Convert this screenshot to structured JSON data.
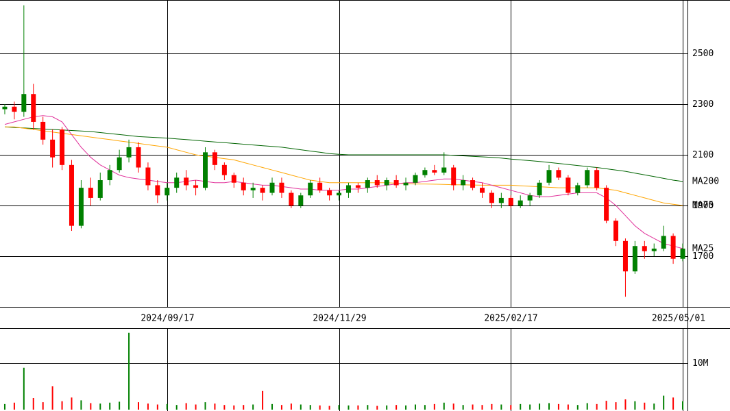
{
  "chart_data": {
    "type": "candlestick",
    "categories": [
      null,
      null,
      null,
      null,
      null,
      null,
      null,
      null,
      null,
      null,
      null,
      null,
      null,
      null,
      null,
      null,
      null,
      "2024/09/17",
      null,
      null,
      null,
      null,
      null,
      null,
      null,
      null,
      null,
      null,
      null,
      null,
      null,
      null,
      null,
      null,
      null,
      "2024/11/29",
      null,
      null,
      null,
      null,
      null,
      null,
      null,
      null,
      null,
      null,
      null,
      null,
      null,
      null,
      null,
      null,
      null,
      "2025/02/17",
      null,
      null,
      null,
      null,
      null,
      null,
      null,
      null,
      null,
      null,
      null,
      null,
      null,
      null,
      null,
      null,
      null,
      "2025/05/01"
    ],
    "open": [
      2280,
      2290,
      2270,
      2340,
      2230,
      2160,
      2200,
      2060,
      1820,
      1970,
      1930,
      2000,
      2040,
      2090,
      2130,
      2050,
      1980,
      1940,
      1970,
      2010,
      1980,
      1970,
      2110,
      2060,
      2020,
      1990,
      1960,
      1970,
      1950,
      1990,
      1950,
      1900,
      1940,
      1990,
      1960,
      1940,
      1950,
      1980,
      1970,
      2000,
      1980,
      2000,
      1980,
      1990,
      2020,
      2040,
      2030,
      2050,
      1980,
      2000,
      1970,
      1950,
      1910,
      1930,
      1900,
      1920,
      1940,
      1990,
      2040,
      2010,
      1950,
      1980,
      2040,
      1970,
      1840,
      1760,
      1640,
      1740,
      1720,
      1730,
      1780,
      1690
    ],
    "high": [
      2300,
      2310,
      2690,
      2380,
      2250,
      2200,
      2210,
      2080,
      2000,
      2010,
      2030,
      2060,
      2120,
      2160,
      2150,
      2070,
      2000,
      1990,
      2030,
      2040,
      2000,
      2130,
      2120,
      2070,
      2030,
      2010,
      1990,
      1980,
      2010,
      2010,
      1960,
      1950,
      2000,
      2010,
      1970,
      1960,
      1990,
      1990,
      2010,
      2020,
      2010,
      2020,
      2010,
      2030,
      2050,
      2060,
      2110,
      2060,
      2020,
      2010,
      1990,
      1960,
      1950,
      1940,
      1940,
      1950,
      2000,
      2060,
      2050,
      2020,
      1990,
      2050,
      2050,
      1980,
      1850,
      1770,
      1760,
      1760,
      1750,
      1820,
      1790,
      1750
    ],
    "low": [
      2260,
      2240,
      2250,
      2200,
      2140,
      2050,
      2040,
      1800,
      1810,
      1900,
      1920,
      1980,
      2030,
      2070,
      2030,
      1960,
      1910,
      1920,
      1950,
      1960,
      1940,
      1960,
      2040,
      2000,
      1970,
      1940,
      1930,
      1920,
      1940,
      1930,
      1890,
      1890,
      1930,
      1950,
      1920,
      1920,
      1930,
      1950,
      1950,
      1970,
      1960,
      1970,
      1960,
      1980,
      2010,
      2020,
      2020,
      1960,
      1960,
      1960,
      1930,
      1890,
      1890,
      1890,
      1890,
      1900,
      1930,
      1980,
      2000,
      1940,
      1940,
      1970,
      1960,
      1830,
      1740,
      1540,
      1630,
      1690,
      1700,
      1720,
      1670,
      1680
    ],
    "close": [
      2290,
      2270,
      2340,
      2230,
      2160,
      2090,
      2060,
      1820,
      1970,
      1930,
      2000,
      2040,
      2090,
      2130,
      2050,
      1980,
      1940,
      1970,
      2010,
      1980,
      1970,
      2110,
      2060,
      2020,
      1990,
      1960,
      1970,
      1950,
      1990,
      1950,
      1900,
      1940,
      1990,
      1960,
      1940,
      1950,
      1980,
      1970,
      2000,
      1980,
      2000,
      1980,
      1990,
      2020,
      2040,
      2030,
      2050,
      1980,
      2000,
      1970,
      1950,
      1910,
      1930,
      1900,
      1920,
      1940,
      1990,
      2040,
      2010,
      1950,
      1980,
      2040,
      1970,
      1840,
      1760,
      1640,
      1740,
      1720,
      1730,
      1780,
      1690,
      1730
    ],
    "up_color": "#008000",
    "down_color": "#ff0000",
    "series": [
      {
        "name": "MA200",
        "color": "#006400",
        "values": [
          2210,
          2208,
          2206,
          2204,
          2202,
          2200,
          2198,
          2196,
          2194,
          2192,
          2188,
          2184,
          2180,
          2176,
          2172,
          2170,
          2168,
          2166,
          2163,
          2160,
          2157,
          2154,
          2151,
          2148,
          2145,
          2142,
          2139,
          2136,
          2133,
          2130,
          2125,
          2120,
          2115,
          2110,
          2105,
          2102,
          2100,
          2100,
          2100,
          2100,
          2100,
          2100,
          2100,
          2100,
          2100,
          2100,
          2100,
          2098,
          2096,
          2094,
          2092,
          2090,
          2087,
          2083,
          2080,
          2077,
          2074,
          2070,
          2066,
          2062,
          2058,
          2054,
          2050,
          2045,
          2040,
          2035,
          2028,
          2021,
          2014,
          2007,
          2000,
          1995
        ]
      },
      {
        "name": "MA75",
        "color": "#ffa500",
        "values": [
          2210,
          2210,
          2205,
          2200,
          2195,
          2190,
          2185,
          2180,
          2175,
          2170,
          2165,
          2160,
          2155,
          2150,
          2145,
          2140,
          2135,
          2130,
          2120,
          2110,
          2100,
          2095,
          2090,
          2085,
          2080,
          2070,
          2060,
          2050,
          2040,
          2030,
          2020,
          2010,
          2000,
          1995,
          1990,
          1990,
          1990,
          1990,
          1990,
          1990,
          1990,
          1988,
          1986,
          1985,
          1985,
          1984,
          1983,
          1982,
          1982,
          1981,
          1980,
          1980,
          1980,
          1980,
          1978,
          1976,
          1974,
          1972,
          1970,
          1970,
          1970,
          1970,
          1970,
          1965,
          1960,
          1950,
          1940,
          1930,
          1920,
          1910,
          1905,
          1900
        ]
      },
      {
        "name": "MA25",
        "color": "#e0309a",
        "values": [
          2220,
          2230,
          2240,
          2250,
          2255,
          2250,
          2230,
          2180,
          2130,
          2090,
          2060,
          2040,
          2020,
          2010,
          2005,
          2000,
          1995,
          1990,
          1990,
          1995,
          2000,
          1995,
          1990,
          1990,
          1995,
          1990,
          1985,
          1980,
          1980,
          1975,
          1970,
          1965,
          1965,
          1960,
          1960,
          1960,
          1965,
          1965,
          1970,
          1975,
          1980,
          1985,
          1990,
          1990,
          1995,
          2000,
          2005,
          2005,
          2000,
          1995,
          1990,
          1980,
          1970,
          1960,
          1950,
          1940,
          1935,
          1935,
          1940,
          1945,
          1950,
          1950,
          1950,
          1930,
          1900,
          1860,
          1820,
          1790,
          1770,
          1750,
          1740,
          1730
        ]
      }
    ],
    "ylim": [
      1500,
      2711
    ],
    "yticks": [
      1700,
      1900,
      2100,
      2300,
      2500
    ],
    "grid": true,
    "volume": {
      "values": [
        1200000,
        1500000,
        9000000,
        2500000,
        1600000,
        5000000,
        1800000,
        2600000,
        2000000,
        1400000,
        1300000,
        1500000,
        1700000,
        16500000,
        1600000,
        1300000,
        1100000,
        1200000,
        1000000,
        1400000,
        1100000,
        1600000,
        1300000,
        1000000,
        900000,
        1000000,
        1100000,
        4000000,
        1200000,
        1000000,
        1300000,
        1100000,
        1000000,
        900000,
        800000,
        1000000,
        900000,
        900000,
        1000000,
        800000,
        900000,
        1000000,
        900000,
        1100000,
        1000000,
        1200000,
        1500000,
        1300000,
        1000000,
        1100000,
        1000000,
        1200000,
        1100000,
        1000000,
        1200000,
        1100000,
        1300000,
        1400000,
        1200000,
        1100000,
        1000000,
        1400000,
        1200000,
        1900000,
        1600000,
        2200000,
        1800000,
        1500000,
        1300000,
        3000000,
        2600000,
        1800000
      ],
      "ylim": [
        0,
        17350000
      ],
      "yticks": [
        {
          "value": 10000000,
          "label": "10M"
        }
      ]
    }
  }
}
